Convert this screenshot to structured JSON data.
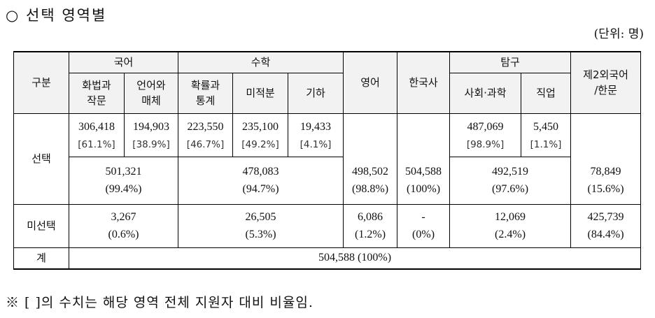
{
  "heading": "○ 선택 영역별",
  "unit": "(단위: 명)",
  "headers": {
    "gubun": "구분",
    "korean": "국어",
    "math": "수학",
    "english": "영어",
    "history": "한국사",
    "inquiry": "탐구",
    "foreign": "제2외국어\n/한문",
    "hwabeop": "화법과\n작문",
    "eoneo": "언어와\n매체",
    "probability": "확률과\n통계",
    "calculus": "미적분",
    "geometry": "기하",
    "social_science": "사회·과학",
    "vocational": "직업"
  },
  "rows": {
    "selected_label": "선택",
    "unselected_label": "미선택",
    "total_label": "계"
  },
  "selected_sub": {
    "hwabeop": {
      "value": "306,418",
      "pct": "[61.1%]"
    },
    "eoneo": {
      "value": "194,903",
      "pct": "[38.9%]"
    },
    "probability": {
      "value": "223,550",
      "pct": "[46.7%]"
    },
    "calculus": {
      "value": "235,100",
      "pct": "[49.2%]"
    },
    "geometry": {
      "value": "19,433",
      "pct": "[4.1%]"
    },
    "social_science": {
      "value": "487,069",
      "pct": "[98.9%]"
    },
    "vocational": {
      "value": "5,450",
      "pct": "[1.1%]"
    }
  },
  "selected_total": {
    "korean": {
      "value": "501,321",
      "pct": "(99.4%)"
    },
    "math": {
      "value": "478,083",
      "pct": "(94.7%)"
    },
    "english": {
      "value": "498,502",
      "pct": "(98.8%)"
    },
    "history": {
      "value": "504,588",
      "pct": "(100%)"
    },
    "inquiry": {
      "value": "492,519",
      "pct": "(97.6%)"
    },
    "foreign": {
      "value": "78,849",
      "pct": "(15.6%)"
    }
  },
  "unselected": {
    "korean": {
      "value": "3,267",
      "pct": "(0.6%)"
    },
    "math": {
      "value": "26,505",
      "pct": "(5.3%)"
    },
    "english": {
      "value": "6,086",
      "pct": "(1.2%)"
    },
    "history": {
      "value": "-",
      "pct": "(0%)"
    },
    "inquiry": {
      "value": "12,069",
      "pct": "(2.4%)"
    },
    "foreign": {
      "value": "425,739",
      "pct": "(84.4%)"
    }
  },
  "total": "504,588 (100%)",
  "note": "※ [ ]의 수치는 해당 영역 전체 지원자 대비 비율임."
}
